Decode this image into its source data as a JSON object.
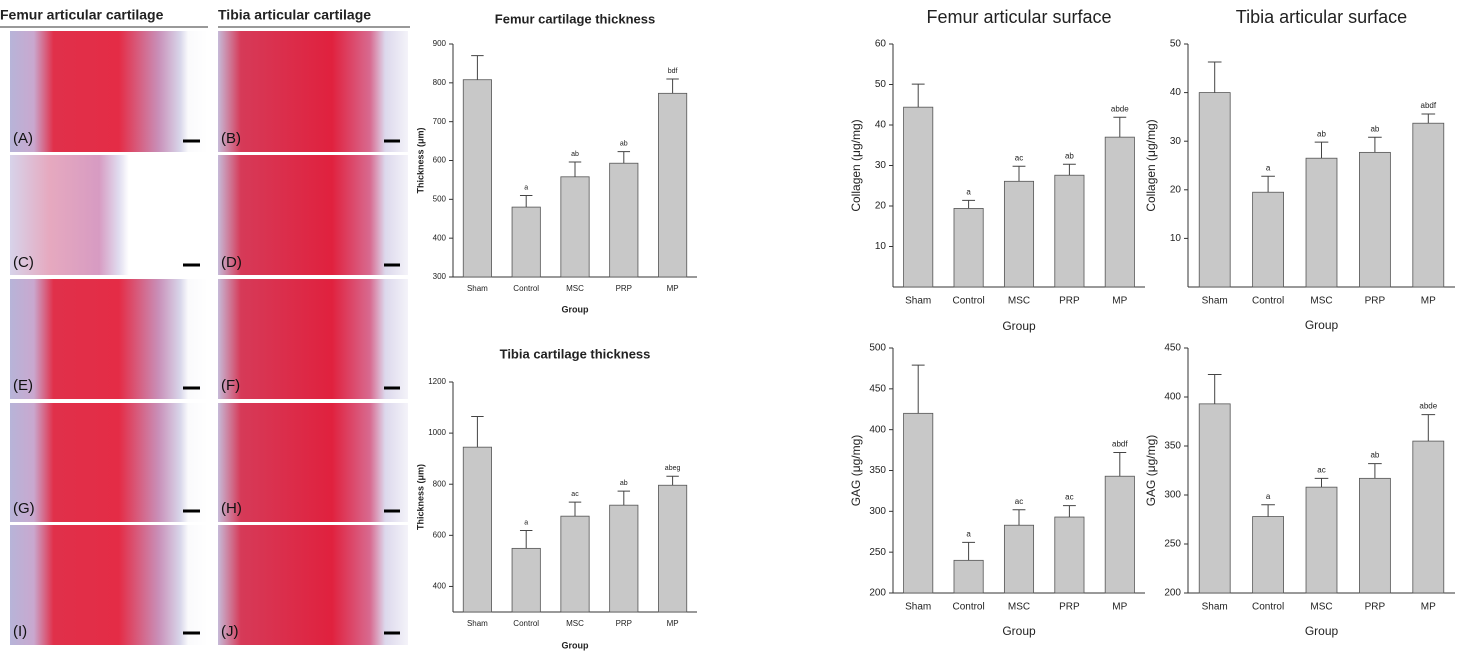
{
  "histology": {
    "headers": [
      "Femur articular cartilage",
      "Tibia articular cartilage"
    ],
    "panels": [
      "(A)",
      "(B)",
      "(C)",
      "(D)",
      "(E)",
      "(F)",
      "(G)",
      "(H)",
      "(I)",
      "(J)"
    ]
  },
  "chart_data": [
    {
      "type": "bar",
      "title": "Femur cartilage thickness",
      "x_label": "Group",
      "y_label": "Thickness (μm)",
      "categories": [
        "Sham",
        "Control",
        "MSC",
        "PRP",
        "MP"
      ],
      "values": [
        808,
        480,
        558,
        593,
        773
      ],
      "errors": [
        62,
        30,
        38,
        30,
        37
      ],
      "annotations": [
        null,
        "a",
        "ab",
        "ab",
        "bdf"
      ],
      "color": "#c8c8c8",
      "ylim": [
        300,
        900
      ],
      "yticks": [
        300,
        400,
        500,
        600,
        700,
        800,
        900
      ]
    },
    {
      "type": "bar",
      "title": "Tibia cartilage thickness",
      "x_label": "Group",
      "y_label": "Thickness (μm)",
      "categories": [
        "Sham",
        "Control",
        "MSC",
        "PRP",
        "MP"
      ],
      "values": [
        945,
        549,
        675,
        718,
        796
      ],
      "errors": [
        120,
        70,
        55,
        55,
        35
      ],
      "annotations": [
        null,
        "a",
        "ac",
        "ab",
        "abeg"
      ],
      "color": "#c8c8c8",
      "ylim": [
        300,
        1200
      ],
      "yticks": [
        400,
        600,
        800,
        1000,
        1200
      ]
    },
    {
      "type": "bar",
      "title": "Femur articular surface",
      "x_label": "Group",
      "y_label": "Collagen (μg/mg)",
      "categories": [
        "Sham",
        "Control",
        "MSC",
        "PRP",
        "MP"
      ],
      "values": [
        44.4,
        19.4,
        26.1,
        27.6,
        37
      ],
      "errors": [
        5.7,
        2,
        3.7,
        2.7,
        4.9
      ],
      "annotations": [
        null,
        "a",
        "ac",
        "ab",
        "abde"
      ],
      "color": "#c8c8c8",
      "ylim": [
        0,
        60
      ],
      "yticks": [
        10,
        20,
        30,
        40,
        50,
        60
      ]
    },
    {
      "type": "bar",
      "title": "Tibia articular surface",
      "x_label": "Group",
      "y_label": "Collagen (μg/mg)",
      "categories": [
        "Sham",
        "Control",
        "MSC",
        "PRP",
        "MP"
      ],
      "values": [
        40,
        19.5,
        26.5,
        27.7,
        33.7
      ],
      "errors": [
        6.3,
        3.3,
        3.3,
        3.1,
        1.9
      ],
      "annotations": [
        null,
        "a",
        "ab",
        "ab",
        "abdf"
      ],
      "color": "#c8c8c8",
      "ylim": [
        0,
        50
      ],
      "yticks": [
        10,
        20,
        30,
        40,
        50
      ]
    },
    {
      "type": "bar",
      "x_label": "Group",
      "y_label": "GAG (μg/mg)",
      "categories": [
        "Sham",
        "Control",
        "MSC",
        "PRP",
        "MP"
      ],
      "values": [
        420,
        240,
        283,
        293,
        343
      ],
      "errors": [
        59,
        22,
        19,
        14,
        29
      ],
      "annotations": [
        null,
        "a",
        "ac",
        "ac",
        "abdf"
      ],
      "color": "#c8c8c8",
      "ylim": [
        200,
        500
      ],
      "yticks": [
        200,
        250,
        300,
        350,
        400,
        450,
        500
      ]
    },
    {
      "type": "bar",
      "x_label": "Group",
      "y_label": "GAG (μg/mg)",
      "categories": [
        "Sham",
        "Control",
        "MSC",
        "PRP",
        "MP"
      ],
      "values": [
        393,
        278,
        308,
        317,
        355
      ],
      "errors": [
        30,
        12,
        9,
        15,
        27
      ],
      "annotations": [
        null,
        "a",
        "ac",
        "ab",
        "abde"
      ],
      "color": "#c8c8c8",
      "ylim": [
        200,
        450
      ],
      "yticks": [
        200,
        250,
        300,
        350,
        400,
        450
      ]
    }
  ]
}
